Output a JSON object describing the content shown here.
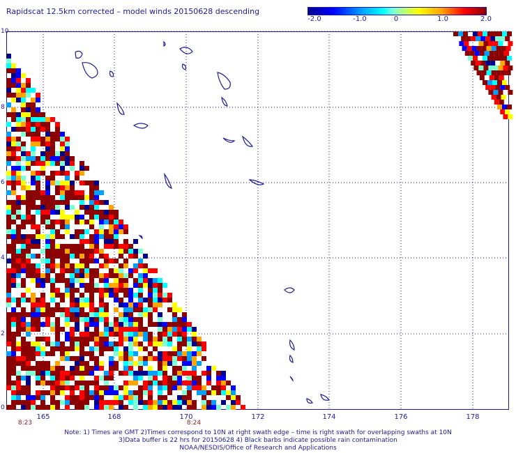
{
  "title": "Rapidscat 12.5km corrected – model winds 20150628 descending",
  "colorbar": {
    "ticks": [
      "-2.0",
      "-1.0",
      "0",
      "1.0",
      "2.0"
    ],
    "colors": [
      "#00008b",
      "#0000ff",
      "#00a0ff",
      "#00ffff",
      "#7fffd4",
      "#ffff00",
      "#ffa500",
      "#ff0000",
      "#8b0000"
    ]
  },
  "axes": {
    "y_ticks": [
      "10",
      "8",
      "6",
      "4",
      "2",
      "0"
    ],
    "x_ticks": [
      "165",
      "168",
      "170",
      "172",
      "174",
      "176",
      "178"
    ],
    "x_range": [
      164.4,
      179.1
    ],
    "y_range": [
      0,
      10
    ]
  },
  "swath_times": [
    "8:23",
    "8:24"
  ],
  "notes": [
    "Note: 1) Times are GMT 2)Times correspond to 10N at right swath edge – time is right swath for overlapping swaths at 10N",
    "3)Data buffer is 22 hrs for 20150628 4) Black barbs indicate possible rain contamination",
    "NOAA/NESDIS/Office of Research and Applications"
  ]
}
